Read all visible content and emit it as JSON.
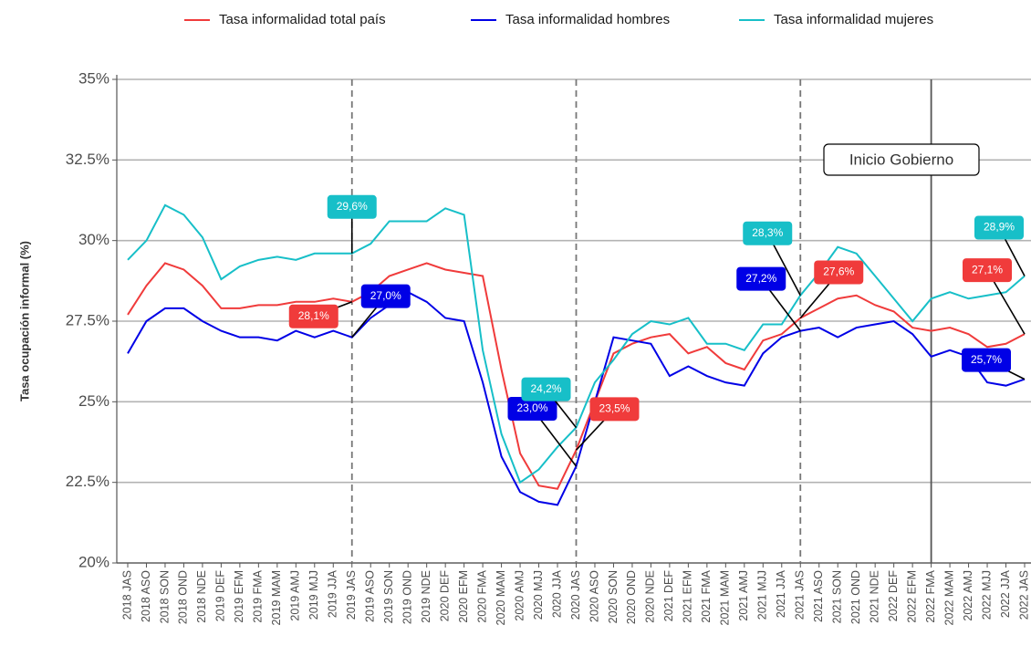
{
  "chart_data": {
    "type": "line",
    "y_label": "Tasa ocupación informal (%)",
    "categories": [
      "2018 JAS",
      "2018 ASO",
      "2018 SON",
      "2018 OND",
      "2018 NDE",
      "2019 DEF",
      "2019 EFM",
      "2019 FMA",
      "2019 MAM",
      "2019 AMJ",
      "2019 MJJ",
      "2019 JJA",
      "2019 JAS",
      "2019 ASO",
      "2019 SON",
      "2019 OND",
      "2019 NDE",
      "2020 DEF",
      "2020 EFM",
      "2020 FMA",
      "2020 MAM",
      "2020 AMJ",
      "2020 MJJ",
      "2020 JJA",
      "2020 JAS",
      "2020 ASO",
      "2020 SON",
      "2020 OND",
      "2020 NDE",
      "2021 DEF",
      "2021 EFM",
      "2021 FMA",
      "2021 MAM",
      "2021 AMJ",
      "2021 MJJ",
      "2021 JJA",
      "2021 JAS",
      "2021 ASO",
      "2021 SON",
      "2021 OND",
      "2021 NDE",
      "2022 DEF",
      "2022 EFM",
      "2022 FMA",
      "2022 MAM",
      "2022 AMJ",
      "2022 MJJ",
      "2022 JJA",
      "2022 JAS"
    ],
    "series": [
      {
        "name": "Tasa informalidad total país",
        "color": "#f03b3b",
        "values": [
          27.7,
          28.6,
          29.3,
          29.1,
          28.6,
          27.9,
          27.9,
          28.0,
          28.0,
          28.1,
          28.1,
          28.2,
          28.1,
          28.4,
          28.9,
          29.1,
          29.3,
          29.1,
          29.0,
          28.9,
          26.0,
          23.4,
          22.4,
          22.3,
          23.5,
          25.0,
          26.5,
          26.8,
          27.0,
          27.1,
          26.5,
          26.7,
          26.2,
          26.0,
          26.9,
          27.1,
          27.6,
          27.9,
          28.2,
          28.3,
          28.0,
          27.8,
          27.3,
          27.2,
          27.3,
          27.1,
          26.7,
          26.8,
          27.1
        ],
        "value_labels": [
          null,
          null,
          null,
          null,
          null,
          null,
          null,
          null,
          null,
          null,
          null,
          null,
          "28,1%",
          null,
          null,
          null,
          null,
          null,
          null,
          null,
          null,
          null,
          null,
          null,
          "23,5%",
          null,
          null,
          null,
          null,
          null,
          null,
          null,
          null,
          null,
          null,
          null,
          "27,6%",
          null,
          null,
          null,
          null,
          null,
          null,
          null,
          null,
          null,
          null,
          null,
          "27,1%"
        ]
      },
      {
        "name": "Tasa informalidad hombres",
        "color": "#0000e6",
        "values": [
          26.5,
          27.5,
          27.9,
          27.9,
          27.5,
          27.2,
          27.0,
          27.0,
          26.9,
          27.2,
          27.0,
          27.2,
          27.0,
          27.6,
          28.0,
          28.4,
          28.1,
          27.6,
          27.5,
          25.6,
          23.3,
          22.2,
          21.9,
          21.8,
          23.0,
          25.0,
          27.0,
          26.9,
          26.8,
          25.8,
          26.1,
          25.8,
          25.6,
          25.5,
          26.5,
          27.0,
          27.2,
          27.3,
          27.0,
          27.3,
          27.4,
          27.5,
          27.1,
          26.4,
          26.6,
          26.4,
          25.6,
          25.5,
          25.7
        ],
        "value_labels": [
          null,
          null,
          null,
          null,
          null,
          null,
          null,
          null,
          null,
          null,
          null,
          null,
          "27,0%",
          null,
          null,
          null,
          null,
          null,
          null,
          null,
          null,
          null,
          null,
          null,
          "23,0%",
          null,
          null,
          null,
          null,
          null,
          null,
          null,
          null,
          null,
          null,
          null,
          "27,2%",
          null,
          null,
          null,
          null,
          null,
          null,
          null,
          null,
          null,
          null,
          null,
          "25,7%"
        ]
      },
      {
        "name": "Tasa informalidad mujeres",
        "color": "#17bfc8",
        "values": [
          29.4,
          30.0,
          31.1,
          30.8,
          30.1,
          28.8,
          29.2,
          29.4,
          29.5,
          29.4,
          29.6,
          29.6,
          29.6,
          29.9,
          30.6,
          30.6,
          30.6,
          31.0,
          30.8,
          26.6,
          24.0,
          22.5,
          22.9,
          23.6,
          24.2,
          25.6,
          26.3,
          27.1,
          27.5,
          27.4,
          27.6,
          26.8,
          26.8,
          26.6,
          27.4,
          27.4,
          28.3,
          29.0,
          29.8,
          29.6,
          28.9,
          28.2,
          27.5,
          28.2,
          28.4,
          28.2,
          28.3,
          28.4,
          28.9
        ],
        "value_labels": [
          null,
          null,
          null,
          null,
          null,
          null,
          null,
          null,
          null,
          null,
          null,
          null,
          "29,6%",
          null,
          null,
          null,
          null,
          null,
          null,
          null,
          null,
          null,
          null,
          null,
          "24,2%",
          null,
          null,
          null,
          null,
          null,
          null,
          null,
          null,
          null,
          null,
          null,
          "28,3%",
          null,
          null,
          null,
          null,
          null,
          null,
          null,
          null,
          null,
          null,
          null,
          "28,9%"
        ]
      }
    ],
    "ylim": [
      20,
      35
    ],
    "yticks": [
      {
        "value": 20,
        "label": "20%"
      },
      {
        "value": 22.5,
        "label": "22.5%"
      },
      {
        "value": 25,
        "label": "25%"
      },
      {
        "value": 27.5,
        "label": "27.5%"
      },
      {
        "value": 30,
        "label": "30%"
      },
      {
        "value": 32.5,
        "label": "32.5%"
      },
      {
        "value": 35,
        "label": "35%"
      }
    ],
    "grid": true,
    "legend": "top",
    "dashed_lines": [
      "2019 JAS",
      "2020 JAS",
      "2021 JAS"
    ],
    "annotation": {
      "text": "Inicio Gobierno",
      "category": "2022 FMA"
    }
  }
}
